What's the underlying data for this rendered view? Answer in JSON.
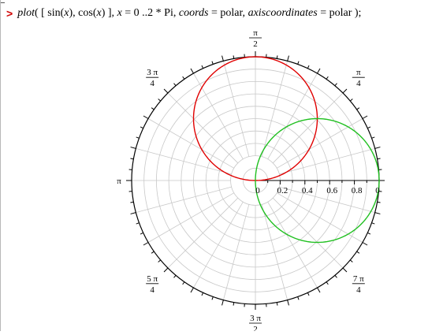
{
  "worksheet": {
    "prompt": ">",
    "input_parts": [
      {
        "text": "plot",
        "italic": true
      },
      {
        "text": "( [ sin(",
        "italic": false
      },
      {
        "text": "x",
        "italic": true
      },
      {
        "text": "), cos(",
        "italic": false
      },
      {
        "text": "x",
        "italic": true
      },
      {
        "text": ") ], ",
        "italic": false
      },
      {
        "text": "x",
        "italic": true
      },
      {
        "text": " = 0 ..2 * Pi, ",
        "italic": false
      },
      {
        "text": "coords",
        "italic": true
      },
      {
        "text": " = polar, ",
        "italic": false
      },
      {
        "text": "axiscoordinates",
        "italic": true
      },
      {
        "text": " = polar );",
        "italic": false
      }
    ]
  },
  "chart_data": {
    "type": "polar-line",
    "coords": "polar",
    "axiscoordinates": "polar",
    "series": [
      {
        "expression": "sin(x)",
        "color": "#e00000"
      },
      {
        "expression": "cos(x)",
        "color": "#20c020"
      }
    ],
    "x_range": [
      0,
      6.283185307179586
    ],
    "radial_max": 1.0,
    "radial_ticks": [
      {
        "value": 0,
        "label": "0"
      },
      {
        "value": 0.2,
        "label": "0.2"
      },
      {
        "value": 0.4,
        "label": "0.4"
      },
      {
        "value": 0.6,
        "label": "0.6"
      },
      {
        "value": 0.8,
        "label": "0.8"
      }
    ],
    "angular_labels": [
      {
        "angle_deg": 0,
        "num": "0",
        "den": ""
      },
      {
        "angle_deg": 45,
        "num": "π",
        "den": "4"
      },
      {
        "angle_deg": 90,
        "num": "π",
        "den": "2"
      },
      {
        "angle_deg": 135,
        "num": "3 π",
        "den": "4"
      },
      {
        "angle_deg": 180,
        "num": "π",
        "den": ""
      },
      {
        "angle_deg": 225,
        "num": "5 π",
        "den": "4"
      },
      {
        "angle_deg": 270,
        "num": "3 π",
        "den": "2"
      },
      {
        "angle_deg": 315,
        "num": "7 π",
        "den": "4"
      }
    ],
    "grid": true,
    "grid_color": "#c8c8c8",
    "axis_color": "#000000"
  }
}
